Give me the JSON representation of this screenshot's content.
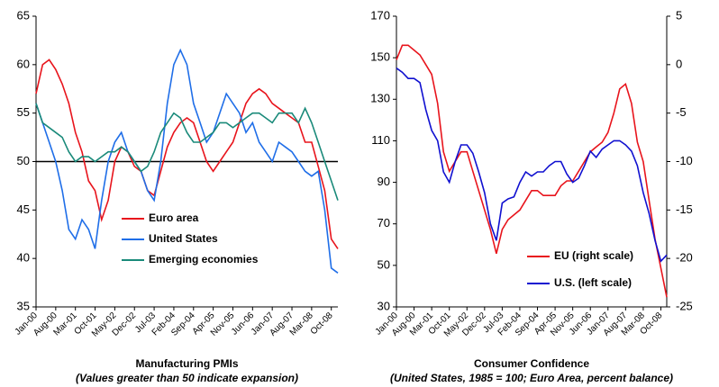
{
  "chart_data": [
    {
      "type": "line",
      "title": "Manufacturing PMIs",
      "subtitle": "(Values greater than 50 indicate expansion)",
      "categories": [
        "Jan-00",
        null,
        null,
        "Aug-00",
        null,
        null,
        "Mar-01",
        null,
        null,
        "Oct-01",
        null,
        null,
        "May-02",
        null,
        null,
        "Dec-02",
        null,
        null,
        "Jul-03",
        null,
        null,
        "Feb-04",
        null,
        null,
        "Sep-04",
        null,
        null,
        "Apr-05",
        null,
        null,
        "Nov-05",
        null,
        null,
        "Jun-06",
        null,
        null,
        "Jan-07",
        null,
        null,
        "Aug-07",
        null,
        null,
        "Mar-08",
        null,
        null,
        "Oct-08",
        null
      ],
      "series": [
        {
          "name": "Euro area",
          "color": "#e8141c",
          "values": [
            57,
            60,
            60.5,
            59.5,
            58,
            56,
            53,
            51,
            48,
            47,
            44,
            46,
            50,
            51.5,
            51,
            49.5,
            49,
            47,
            46.5,
            49,
            51.5,
            53,
            54,
            54.5,
            54,
            52,
            50,
            49,
            50,
            51,
            52,
            54,
            56,
            57,
            57.5,
            57,
            56,
            55.5,
            55,
            54.5,
            54,
            52,
            52,
            49.5,
            47,
            42,
            41
          ]
        },
        {
          "name": "United States",
          "color": "#1f6ee8",
          "values": [
            56,
            54,
            52,
            50,
            47,
            43,
            42,
            44,
            43,
            41,
            46,
            50,
            52,
            53,
            51,
            50,
            49,
            47,
            46,
            50,
            56,
            60,
            61.5,
            60,
            56,
            54,
            52,
            53,
            55,
            57,
            56,
            55,
            53,
            54,
            52,
            51,
            50,
            52,
            51.5,
            51,
            50,
            49,
            48.5,
            49,
            45,
            39,
            38.5
          ]
        },
        {
          "name": "Emerging economies",
          "color": "#1a8a7a",
          "values": [
            56,
            54,
            53.5,
            53,
            52.5,
            51,
            50,
            50.5,
            50.5,
            50,
            50.5,
            51,
            51,
            51.5,
            51,
            50,
            49,
            49.5,
            51,
            53,
            54,
            55,
            54.5,
            53,
            52,
            52,
            52.5,
            53,
            54,
            54,
            53.5,
            54,
            54.5,
            55,
            55,
            54.5,
            54,
            55,
            55,
            55,
            54,
            55.5,
            54,
            52,
            50,
            48,
            46
          ]
        }
      ],
      "ylim": [
        35,
        65
      ],
      "yticks": [
        35,
        40,
        45,
        50,
        55,
        60,
        65
      ],
      "hline": 50,
      "legend": "lower center"
    },
    {
      "type": "line",
      "title": "Consumer Confidence",
      "subtitle": "(United States, 1985 = 100; Euro Area, percent balance)",
      "categories": [
        "Jan-00",
        null,
        null,
        "Aug-00",
        null,
        null,
        "Mar-01",
        null,
        null,
        "Oct-01",
        null,
        null,
        "May-02",
        null,
        null,
        "Dec-02",
        null,
        null,
        "Jul-03",
        null,
        null,
        "Feb-04",
        null,
        null,
        "Sep-04",
        null,
        null,
        "Apr-05",
        null,
        null,
        "Nov-05",
        null,
        null,
        "Jun-06",
        null,
        null,
        "Jan-07",
        null,
        null,
        "Aug-07",
        null,
        null,
        "Mar-08",
        null,
        null,
        "Oct-08",
        null
      ],
      "series": [
        {
          "name": "EU (right scale)",
          "color": "#e8141c",
          "axis": "y2",
          "values": [
            0.5,
            2,
            2,
            1.5,
            1,
            0,
            -1,
            -4,
            -9,
            -11,
            -10,
            -9,
            -9,
            -11,
            -13,
            -15,
            -17,
            -19.5,
            -17,
            -16,
            -15.5,
            -15,
            -14,
            -13,
            -13,
            -13.5,
            -13.5,
            -13.5,
            -12.5,
            -12,
            -12,
            -11,
            -10,
            -9,
            -8.5,
            -8,
            -7,
            -5,
            -2.5,
            -2,
            -4,
            -8,
            -10,
            -14,
            -18,
            -21,
            -24
          ]
        },
        {
          "name": "U.S. (left scale)",
          "color": "#1010d0",
          "values": [
            145,
            143,
            140,
            140,
            138,
            125,
            115,
            110,
            95,
            90,
            100,
            108,
            108,
            104,
            95,
            85,
            70,
            62,
            80,
            82,
            83,
            90,
            95,
            93,
            95,
            95,
            98,
            100,
            100,
            94,
            90,
            92,
            98,
            105,
            102,
            106,
            108,
            110,
            110,
            108,
            105,
            98,
            85,
            75,
            62,
            52,
            55
          ]
        }
      ],
      "ylim": [
        30,
        170
      ],
      "yticks": [
        30,
        50,
        70,
        90,
        110,
        130,
        150,
        170
      ],
      "y2lim": [
        -25,
        5
      ],
      "y2ticks": [
        -25,
        -20,
        -15,
        -10,
        -5,
        0,
        5
      ],
      "legend": "lower right"
    }
  ]
}
